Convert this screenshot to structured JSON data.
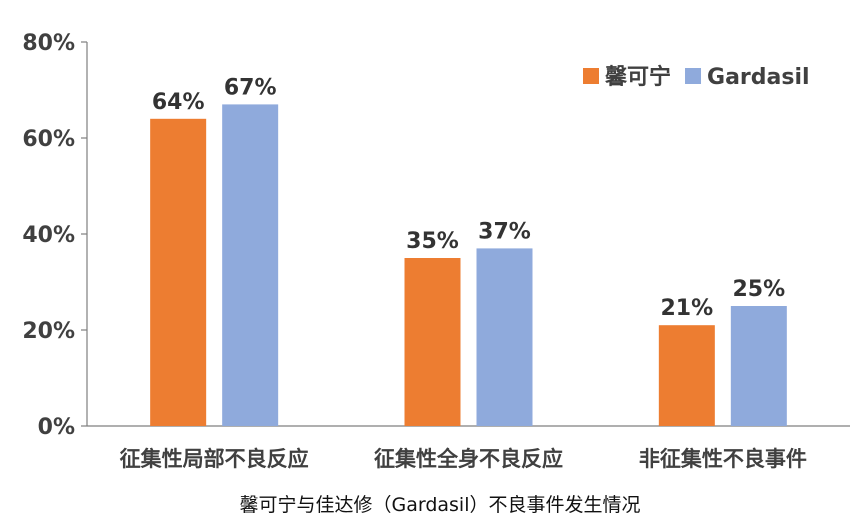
{
  "chart_data": {
    "type": "bar",
    "title": "",
    "caption": "馨可宁与佳达修（Gardasil）不良事件发生情况",
    "xlabel": "",
    "ylabel": "",
    "ylim": [
      0,
      80
    ],
    "yticks": [
      "0%",
      "20%",
      "40%",
      "60%",
      "80%"
    ],
    "categories": [
      "征集性局部不良反应",
      "征集性全身不良反应",
      "非征集性不良事件"
    ],
    "series": [
      {
        "name": "馨可宁",
        "color": "#ED7D31",
        "values": [
          64,
          35,
          21
        ],
        "labels": [
          "64%",
          "35%",
          "21%"
        ]
      },
      {
        "name": "Gardasil",
        "color": "#8FAADC",
        "values": [
          67,
          37,
          25
        ],
        "labels": [
          "67%",
          "37%",
          "25%"
        ]
      }
    ],
    "legend": "top-right",
    "grid": false
  }
}
